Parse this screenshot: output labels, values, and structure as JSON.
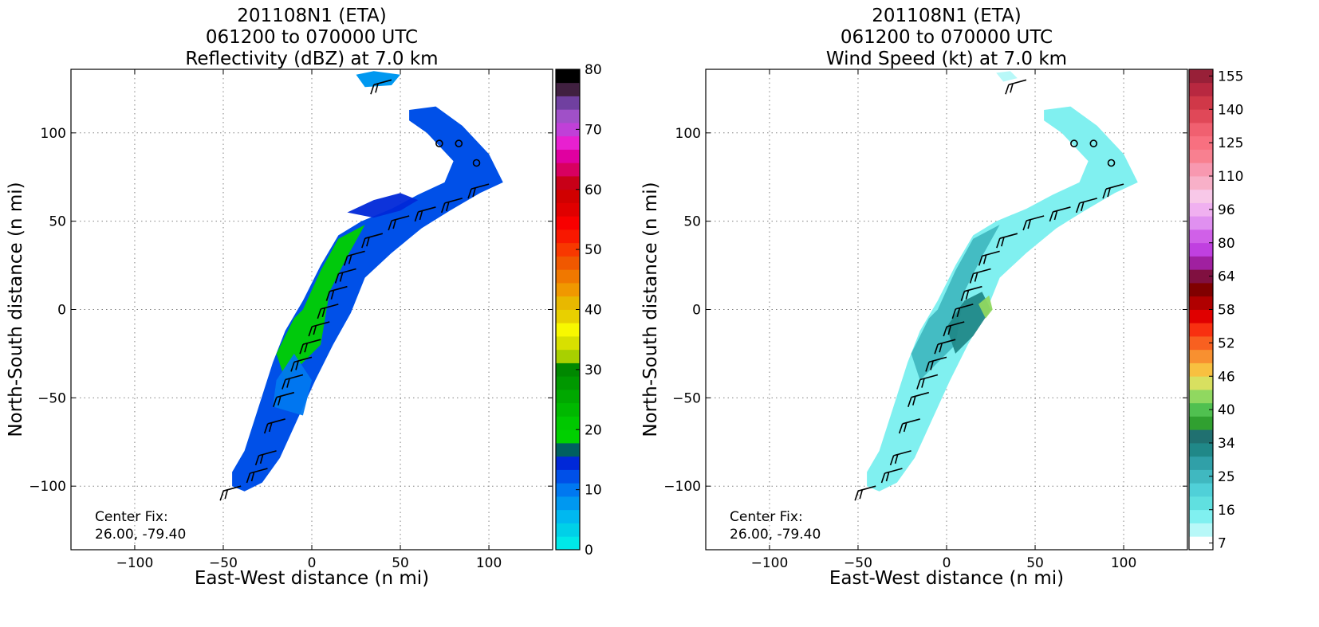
{
  "chart_data": [
    {
      "type": "heatmap",
      "title_lines": [
        "201108N1 (ETA)",
        "061200 to 070000 UTC",
        "Reflectivity (dBZ) at 7.0 km"
      ],
      "xlabel": "East-West distance (n mi)",
      "ylabel": "North-South distance (n mi)",
      "xlim": [
        -136,
        136
      ],
      "ylim": [
        -136,
        136
      ],
      "xticks": [
        -100,
        -50,
        0,
        50,
        100
      ],
      "yticks": [
        -100,
        -50,
        0,
        50,
        100
      ],
      "xtick_labels": [
        "−100",
        "−50",
        "0",
        "50",
        "100"
      ],
      "ytick_labels": [
        "−100",
        "−50",
        "0",
        "50",
        "100"
      ],
      "grid": true,
      "annotation": [
        "Center Fix:",
        "26.00, -79.40"
      ],
      "colorbar": {
        "label_values": [
          "0",
          "10",
          "20",
          "30",
          "40",
          "50",
          "60",
          "70",
          "80"
        ],
        "colors": [
          "#00e8e8",
          "#00d0e8",
          "#00b8f0",
          "#0098f0",
          "#0078f0",
          "#0050e8",
          "#0028d8",
          "#006060",
          "#00d000",
          "#00c800",
          "#00b800",
          "#00a800",
          "#009800",
          "#008800",
          "#a8d000",
          "#d8e000",
          "#f8f800",
          "#e8d000",
          "#e8b800",
          "#f09800",
          "#f07800",
          "#f05800",
          "#f83800",
          "#f81800",
          "#f80000",
          "#e00000",
          "#d00000",
          "#c80018",
          "#d80060",
          "#e000a0",
          "#e820d0",
          "#c040d8",
          "#a050c8",
          "#7040a0",
          "#402040",
          "#000000"
        ]
      },
      "wind_barbs": [
        {
          "x": -40,
          "y": -100
        },
        {
          "x": -25,
          "y": -90
        },
        {
          "x": -20,
          "y": -80
        },
        {
          "x": -15,
          "y": -62
        },
        {
          "x": -10,
          "y": -47
        },
        {
          "x": -5,
          "y": -37
        },
        {
          "x": 0,
          "y": -27
        },
        {
          "x": 5,
          "y": -17
        },
        {
          "x": 10,
          "y": -7
        },
        {
          "x": 15,
          "y": 3
        },
        {
          "x": 20,
          "y": 13
        },
        {
          "x": 25,
          "y": 23
        },
        {
          "x": 30,
          "y": 33
        },
        {
          "x": 40,
          "y": 43
        },
        {
          "x": 55,
          "y": 53
        },
        {
          "x": 70,
          "y": 58
        },
        {
          "x": 85,
          "y": 63
        },
        {
          "x": 100,
          "y": 71
        },
        {
          "x": 45,
          "y": 130
        }
      ],
      "calm_markers": [
        {
          "x": 72,
          "y": 94
        },
        {
          "x": 83,
          "y": 94
        },
        {
          "x": 93,
          "y": 83
        }
      ],
      "echo_region": {
        "outline": [
          [
            -45,
            -100
          ],
          [
            -38,
            -103
          ],
          [
            -28,
            -98
          ],
          [
            -18,
            -84
          ],
          [
            -8,
            -62
          ],
          [
            2,
            -40
          ],
          [
            12,
            -20
          ],
          [
            22,
            -2
          ],
          [
            30,
            18
          ],
          [
            45,
            32
          ],
          [
            62,
            46
          ],
          [
            78,
            56
          ],
          [
            95,
            66
          ],
          [
            108,
            72
          ],
          [
            100,
            88
          ],
          [
            85,
            104
          ],
          [
            70,
            115
          ],
          [
            55,
            113
          ],
          [
            55,
            107
          ],
          [
            65,
            100
          ],
          [
            80,
            84
          ],
          [
            75,
            72
          ],
          [
            60,
            65
          ],
          [
            45,
            57
          ],
          [
            28,
            50
          ],
          [
            15,
            42
          ],
          [
            5,
            25
          ],
          [
            -5,
            5
          ],
          [
            -15,
            -12
          ],
          [
            -22,
            -30
          ],
          [
            -30,
            -55
          ],
          [
            -38,
            -80
          ],
          [
            -45,
            -92
          ]
        ],
        "fill": "#0050e8"
      },
      "secondary_patches": [
        {
          "outline": [
            [
              -5,
              0
            ],
            [
              5,
              22
            ],
            [
              15,
              40
            ],
            [
              30,
              48
            ],
            [
              20,
              30
            ],
            [
              10,
              10
            ],
            [
              5,
              -20
            ],
            [
              -5,
              -30
            ],
            [
              -15,
              -40
            ],
            [
              -20,
              -25
            ],
            [
              -10,
              -5
            ]
          ],
          "fill": "#00d000"
        },
        {
          "outline": [
            [
              -5,
              -60
            ],
            [
              0,
              -40
            ],
            [
              -10,
              -25
            ],
            [
              -20,
              -40
            ],
            [
              -22,
              -55
            ]
          ],
          "fill": "#0078f0"
        },
        {
          "outline": [
            [
              20,
              55
            ],
            [
              35,
              62
            ],
            [
              50,
              66
            ],
            [
              60,
              62
            ],
            [
              50,
              56
            ],
            [
              35,
              52
            ]
          ],
          "fill": "#0028d8"
        }
      ],
      "top_patch": {
        "outline": [
          [
            25,
            133
          ],
          [
            35,
            135
          ],
          [
            50,
            133
          ],
          [
            45,
            127
          ],
          [
            30,
            126
          ]
        ],
        "fill": "#0098f0"
      }
    },
    {
      "type": "heatmap",
      "title_lines": [
        "201108N1 (ETA)",
        "061200 to 070000 UTC",
        "Wind Speed (kt) at 7.0 km"
      ],
      "xlabel": "East-West distance (n mi)",
      "ylabel": "North-South distance (n mi)",
      "xlim": [
        -136,
        136
      ],
      "ylim": [
        -136,
        136
      ],
      "xticks": [
        -100,
        -50,
        0,
        50,
        100
      ],
      "yticks": [
        -100,
        -50,
        0,
        50,
        100
      ],
      "xtick_labels": [
        "−100",
        "−50",
        "0",
        "50",
        "100"
      ],
      "ytick_labels": [
        "−100",
        "−50",
        "0",
        "50",
        "100"
      ],
      "grid": true,
      "annotation": [
        "Center Fix:",
        "26.00, -79.40"
      ],
      "colorbar": {
        "label_values": [
          "7",
          "16",
          "25",
          "34",
          "40",
          "46",
          "52",
          "58",
          "64",
          "80",
          "96",
          "110",
          "125",
          "140",
          "155"
        ],
        "colors": [
          "#ffffff",
          "#b8f8f8",
          "#80f0f0",
          "#60e0e0",
          "#50d0d8",
          "#40b8c0",
          "#30a0a8",
          "#208888",
          "#207070",
          "#30a030",
          "#50c050",
          "#90d860",
          "#d8e060",
          "#f8c040",
          "#f89030",
          "#f86020",
          "#f83010",
          "#e00000",
          "#b00000",
          "#800000",
          "#801040",
          "#a020a0",
          "#c040e0",
          "#d060e8",
          "#e090f0",
          "#f0b0f0",
          "#f8c8e8",
          "#f8b0c8",
          "#f898b0",
          "#f88090",
          "#f87080",
          "#f06070",
          "#e04858",
          "#d03848",
          "#b82840",
          "#982038"
        ]
      },
      "wind_barbs": [
        {
          "x": -40,
          "y": -100
        },
        {
          "x": -25,
          "y": -90
        },
        {
          "x": -20,
          "y": -80
        },
        {
          "x": -15,
          "y": -62
        },
        {
          "x": -10,
          "y": -47
        },
        {
          "x": -5,
          "y": -37
        },
        {
          "x": 0,
          "y": -27
        },
        {
          "x": 5,
          "y": -17
        },
        {
          "x": 10,
          "y": -7
        },
        {
          "x": 15,
          "y": 3
        },
        {
          "x": 20,
          "y": 13
        },
        {
          "x": 25,
          "y": 23
        },
        {
          "x": 30,
          "y": 33
        },
        {
          "x": 40,
          "y": 43
        },
        {
          "x": 55,
          "y": 53
        },
        {
          "x": 70,
          "y": 58
        },
        {
          "x": 85,
          "y": 63
        },
        {
          "x": 100,
          "y": 71
        },
        {
          "x": 45,
          "y": 130
        }
      ],
      "calm_markers": [
        {
          "x": 72,
          "y": 94
        },
        {
          "x": 83,
          "y": 94
        },
        {
          "x": 93,
          "y": 83
        }
      ],
      "echo_region": {
        "outline": [
          [
            -45,
            -100
          ],
          [
            -38,
            -103
          ],
          [
            -28,
            -98
          ],
          [
            -18,
            -84
          ],
          [
            -8,
            -62
          ],
          [
            2,
            -40
          ],
          [
            12,
            -20
          ],
          [
            22,
            -2
          ],
          [
            30,
            18
          ],
          [
            45,
            32
          ],
          [
            62,
            46
          ],
          [
            78,
            56
          ],
          [
            95,
            66
          ],
          [
            108,
            72
          ],
          [
            100,
            88
          ],
          [
            85,
            104
          ],
          [
            70,
            115
          ],
          [
            55,
            113
          ],
          [
            55,
            107
          ],
          [
            65,
            100
          ],
          [
            80,
            84
          ],
          [
            75,
            72
          ],
          [
            60,
            65
          ],
          [
            45,
            57
          ],
          [
            28,
            50
          ],
          [
            15,
            42
          ],
          [
            5,
            25
          ],
          [
            -5,
            5
          ],
          [
            -15,
            -12
          ],
          [
            -22,
            -30
          ],
          [
            -30,
            -55
          ],
          [
            -38,
            -80
          ],
          [
            -45,
            -92
          ]
        ],
        "fill": "#80f0f0"
      },
      "secondary_patches": [
        {
          "outline": [
            [
              -5,
              0
            ],
            [
              5,
              22
            ],
            [
              15,
              40
            ],
            [
              30,
              48
            ],
            [
              20,
              30
            ],
            [
              10,
              10
            ],
            [
              5,
              -20
            ],
            [
              -5,
              -30
            ],
            [
              -15,
              -40
            ],
            [
              -20,
              -25
            ],
            [
              -10,
              -5
            ]
          ],
          "fill": "#40b8c0"
        },
        {
          "outline": [
            [
              0,
              -10
            ],
            [
              10,
              5
            ],
            [
              20,
              10
            ],
            [
              25,
              0
            ],
            [
              15,
              -15
            ],
            [
              5,
              -25
            ]
          ],
          "fill": "#208888"
        },
        {
          "outline": [
            [
              18,
              3
            ],
            [
              24,
              8
            ],
            [
              26,
              0
            ],
            [
              22,
              -5
            ]
          ],
          "fill": "#90d860"
        }
      ],
      "top_patch": {
        "outline": [
          [
            28,
            134
          ],
          [
            36,
            135
          ],
          [
            40,
            131
          ],
          [
            32,
            129
          ]
        ],
        "fill": "#b8f8f8"
      }
    }
  ]
}
